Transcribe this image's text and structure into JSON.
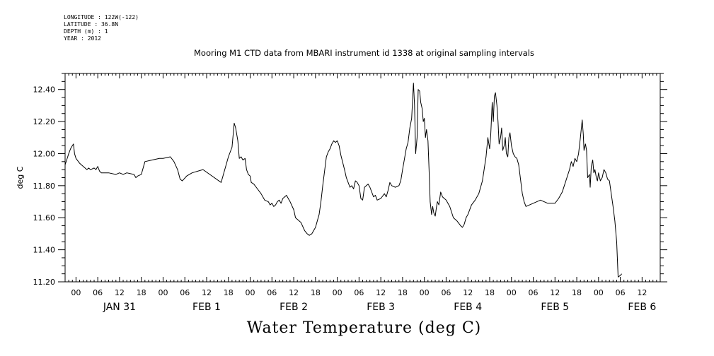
{
  "meta": {
    "longitude": "LONGITUDE : 122W(-122)",
    "latitude": "LATITUDE : 36.8N",
    "depth": "DEPTH (m) : 1",
    "year": "YEAR : 2012"
  },
  "chart_data": {
    "type": "line",
    "title": "Mooring M1 CTD data from MBARI instrument id 1338 at original sampling intervals",
    "xlabel": "",
    "ylabel": "deg C",
    "footer_label": "Water Temperature (deg C)",
    "x_units": "hours since 2012-01-30 21:00",
    "xlim": [
      0,
      164
    ],
    "ylim": [
      11.2,
      12.5
    ],
    "y_ticks": [
      11.2,
      11.4,
      11.6,
      11.8,
      12.0,
      12.2,
      12.4
    ],
    "y_tick_labels": [
      "11.20",
      "11.40",
      "11.60",
      "11.80",
      "12.00",
      "12.20",
      "12.40"
    ],
    "hour_ticks": [
      {
        "x": 3,
        "label": "00"
      },
      {
        "x": 9,
        "label": "06"
      },
      {
        "x": 15,
        "label": "12"
      },
      {
        "x": 21,
        "label": "18"
      },
      {
        "x": 27,
        "label": "00"
      },
      {
        "x": 33,
        "label": "06"
      },
      {
        "x": 39,
        "label": "12"
      },
      {
        "x": 45,
        "label": "18"
      },
      {
        "x": 51,
        "label": "00"
      },
      {
        "x": 57,
        "label": "06"
      },
      {
        "x": 63,
        "label": "12"
      },
      {
        "x": 69,
        "label": "18"
      },
      {
        "x": 75,
        "label": "00"
      },
      {
        "x": 81,
        "label": "06"
      },
      {
        "x": 87,
        "label": "12"
      },
      {
        "x": 93,
        "label": "18"
      },
      {
        "x": 99,
        "label": "00"
      },
      {
        "x": 105,
        "label": "06"
      },
      {
        "x": 111,
        "label": "12"
      },
      {
        "x": 117,
        "label": "18"
      },
      {
        "x": 123,
        "label": "00"
      },
      {
        "x": 129,
        "label": "06"
      },
      {
        "x": 135,
        "label": "12"
      },
      {
        "x": 141,
        "label": "18"
      },
      {
        "x": 147,
        "label": "00"
      },
      {
        "x": 153,
        "label": "06"
      },
      {
        "x": 159,
        "label": "12"
      }
    ],
    "date_labels": [
      {
        "x": 15,
        "label": "JAN 31"
      },
      {
        "x": 39,
        "label": "FEB 1"
      },
      {
        "x": 63,
        "label": "FEB 2"
      },
      {
        "x": 87,
        "label": "FEB 3"
      },
      {
        "x": 111,
        "label": "FEB 4"
      },
      {
        "x": 135,
        "label": "FEB 5"
      },
      {
        "x": 159,
        "label": "FEB 6"
      }
    ],
    "grid": false,
    "series": [
      {
        "values": [
          [
            0,
            11.93
          ],
          [
            1,
            12.0
          ],
          [
            1.5,
            12.03
          ],
          [
            2,
            12.05
          ],
          [
            2.3,
            12.06
          ],
          [
            2.6,
            12.0
          ],
          [
            3,
            11.97
          ],
          [
            4,
            11.94
          ],
          [
            5,
            11.92
          ],
          [
            6,
            11.9
          ],
          [
            6.5,
            11.91
          ],
          [
            7,
            11.9
          ],
          [
            8,
            11.91
          ],
          [
            8.5,
            11.9
          ],
          [
            9,
            11.92
          ],
          [
            9.5,
            11.89
          ],
          [
            10,
            11.88
          ],
          [
            12,
            11.88
          ],
          [
            14,
            11.87
          ],
          [
            15,
            11.88
          ],
          [
            16,
            11.87
          ],
          [
            17,
            11.88
          ],
          [
            19,
            11.87
          ],
          [
            19.5,
            11.85
          ],
          [
            20,
            11.86
          ],
          [
            21,
            11.87
          ],
          [
            22,
            11.95
          ],
          [
            24,
            11.96
          ],
          [
            26,
            11.97
          ],
          [
            27,
            11.97
          ],
          [
            29,
            11.98
          ],
          [
            30,
            11.95
          ],
          [
            31,
            11.9
          ],
          [
            31.7,
            11.84
          ],
          [
            32.3,
            11.83
          ],
          [
            33.5,
            11.86
          ],
          [
            35,
            11.88
          ],
          [
            38,
            11.9
          ],
          [
            43,
            11.82
          ],
          [
            45,
            11.98
          ],
          [
            46,
            12.04
          ],
          [
            46.6,
            12.19
          ],
          [
            47,
            12.16
          ],
          [
            47.6,
            12.08
          ],
          [
            48,
            11.97
          ],
          [
            48.5,
            11.98
          ],
          [
            49,
            11.96
          ],
          [
            49.6,
            11.97
          ],
          [
            50,
            11.9
          ],
          [
            50.5,
            11.87
          ],
          [
            51,
            11.86
          ],
          [
            51.3,
            11.82
          ],
          [
            52,
            11.81
          ],
          [
            53,
            11.78
          ],
          [
            54,
            11.75
          ],
          [
            55,
            11.71
          ],
          [
            56,
            11.7
          ],
          [
            56.5,
            11.68
          ],
          [
            57,
            11.69
          ],
          [
            57.5,
            11.67
          ],
          [
            58,
            11.68
          ],
          [
            58.5,
            11.7
          ],
          [
            59,
            11.71
          ],
          [
            59.5,
            11.69
          ],
          [
            60,
            11.72
          ],
          [
            61,
            11.74
          ],
          [
            62,
            11.7
          ],
          [
            63,
            11.65
          ],
          [
            63.5,
            11.6
          ],
          [
            64,
            11.59
          ],
          [
            65,
            11.57
          ],
          [
            66,
            11.52
          ],
          [
            66.7,
            11.5
          ],
          [
            67.3,
            11.49
          ],
          [
            68,
            11.5
          ],
          [
            68.5,
            11.52
          ],
          [
            69,
            11.54
          ],
          [
            70,
            11.62
          ],
          [
            70.5,
            11.7
          ],
          [
            71,
            11.8
          ],
          [
            72,
            11.98
          ],
          [
            72.5,
            12.01
          ],
          [
            73,
            12.03
          ],
          [
            73.5,
            12.06
          ],
          [
            74,
            12.08
          ],
          [
            74.5,
            12.07
          ],
          [
            75,
            12.08
          ],
          [
            75.5,
            12.05
          ],
          [
            76,
            11.99
          ],
          [
            77,
            11.9
          ],
          [
            77.5,
            11.85
          ],
          [
            78,
            11.82
          ],
          [
            78.5,
            11.79
          ],
          [
            79,
            11.8
          ],
          [
            79.5,
            11.78
          ],
          [
            80,
            11.83
          ],
          [
            80.5,
            11.82
          ],
          [
            81,
            11.8
          ],
          [
            81.5,
            11.72
          ],
          [
            82,
            11.71
          ],
          [
            82.5,
            11.79
          ],
          [
            83,
            11.8
          ],
          [
            83.5,
            11.81
          ],
          [
            84,
            11.79
          ],
          [
            85,
            11.73
          ],
          [
            85.5,
            11.74
          ],
          [
            86,
            11.71
          ],
          [
            87,
            11.72
          ],
          [
            88,
            11.75
          ],
          [
            88.5,
            11.73
          ],
          [
            89,
            11.77
          ],
          [
            89.5,
            11.82
          ],
          [
            90,
            11.8
          ],
          [
            91,
            11.79
          ],
          [
            92,
            11.8
          ],
          [
            92.5,
            11.83
          ],
          [
            93,
            11.9
          ],
          [
            94,
            12.03
          ],
          [
            94.5,
            12.07
          ],
          [
            95,
            12.16
          ],
          [
            95.5,
            12.22
          ],
          [
            96,
            12.44
          ],
          [
            96.3,
            12.3
          ],
          [
            96.6,
            12.0
          ],
          [
            97,
            12.1
          ],
          [
            97.3,
            12.4
          ],
          [
            97.7,
            12.39
          ],
          [
            98,
            12.32
          ],
          [
            98.4,
            12.28
          ],
          [
            98.7,
            12.2
          ],
          [
            99,
            12.22
          ],
          [
            99.3,
            12.1
          ],
          [
            99.6,
            12.15
          ],
          [
            100,
            12.08
          ],
          [
            100.3,
            11.9
          ],
          [
            100.6,
            11.7
          ],
          [
            101,
            11.62
          ],
          [
            101.3,
            11.67
          ],
          [
            101.6,
            11.63
          ],
          [
            102,
            11.61
          ],
          [
            102.3,
            11.66
          ],
          [
            102.6,
            11.7
          ],
          [
            103,
            11.68
          ],
          [
            103.5,
            11.76
          ],
          [
            104,
            11.73
          ],
          [
            105,
            11.71
          ],
          [
            106,
            11.67
          ],
          [
            107,
            11.6
          ],
          [
            108,
            11.58
          ],
          [
            109,
            11.55
          ],
          [
            109.5,
            11.54
          ],
          [
            110,
            11.56
          ],
          [
            110.5,
            11.6
          ],
          [
            111,
            11.62
          ],
          [
            112,
            11.68
          ],
          [
            113,
            11.71
          ],
          [
            114,
            11.75
          ],
          [
            115,
            11.83
          ],
          [
            116,
            11.98
          ],
          [
            116.5,
            12.1
          ],
          [
            117,
            12.03
          ],
          [
            117.3,
            12.12
          ],
          [
            117.7,
            12.32
          ],
          [
            118,
            12.2
          ],
          [
            118.3,
            12.36
          ],
          [
            118.6,
            12.38
          ],
          [
            119,
            12.3
          ],
          [
            119.3,
            12.2
          ],
          [
            119.6,
            12.06
          ],
          [
            120,
            12.1
          ],
          [
            120.3,
            12.16
          ],
          [
            120.6,
            12.02
          ],
          [
            121,
            12.05
          ],
          [
            121.3,
            12.1
          ],
          [
            121.6,
            12.0
          ],
          [
            122,
            11.98
          ],
          [
            122.3,
            12.1
          ],
          [
            122.6,
            12.13
          ],
          [
            123,
            12.05
          ],
          [
            123.5,
            12.0
          ],
          [
            124,
            11.98
          ],
          [
            124.5,
            11.97
          ],
          [
            125,
            11.93
          ],
          [
            126,
            11.75
          ],
          [
            126.5,
            11.7
          ],
          [
            127,
            11.67
          ],
          [
            128,
            11.68
          ],
          [
            129,
            11.69
          ],
          [
            130,
            11.7
          ],
          [
            131,
            11.71
          ],
          [
            132,
            11.7
          ],
          [
            133,
            11.69
          ],
          [
            135,
            11.69
          ],
          [
            136,
            11.72
          ],
          [
            137,
            11.76
          ],
          [
            138,
            11.83
          ],
          [
            139,
            11.9
          ],
          [
            139.5,
            11.95
          ],
          [
            140,
            11.92
          ],
          [
            140.5,
            11.97
          ],
          [
            141,
            11.95
          ],
          [
            141.5,
            12.0
          ],
          [
            142,
            12.1
          ],
          [
            142.5,
            12.21
          ],
          [
            142.8,
            12.12
          ],
          [
            143,
            12.02
          ],
          [
            143.4,
            12.06
          ],
          [
            143.7,
            12.02
          ],
          [
            144,
            11.85
          ],
          [
            144.5,
            11.87
          ],
          [
            144.7,
            11.79
          ],
          [
            145,
            11.92
          ],
          [
            145.4,
            11.96
          ],
          [
            145.7,
            11.88
          ],
          [
            146,
            11.9
          ],
          [
            146.4,
            11.85
          ],
          [
            146.7,
            11.83
          ],
          [
            147,
            11.88
          ],
          [
            147.5,
            11.83
          ],
          [
            148,
            11.85
          ],
          [
            148.5,
            11.9
          ],
          [
            149,
            11.88
          ],
          [
            149.5,
            11.84
          ],
          [
            150,
            11.83
          ],
          [
            150.5,
            11.75
          ],
          [
            151,
            11.67
          ],
          [
            151.5,
            11.58
          ],
          [
            152,
            11.45
          ],
          [
            152.4,
            11.23
          ],
          [
            153,
            11.24
          ],
          [
            153.4,
            11.25
          ]
        ]
      }
    ]
  }
}
